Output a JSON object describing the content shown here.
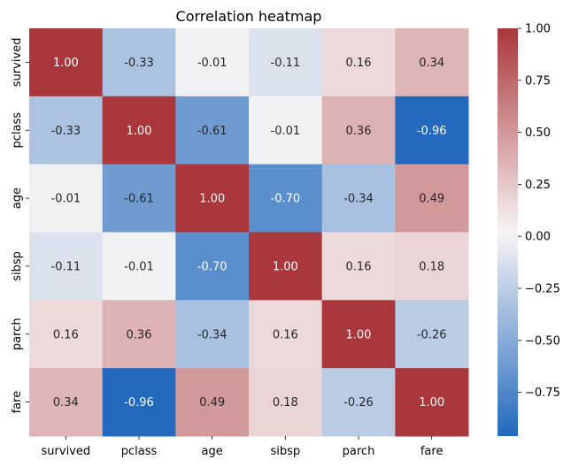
{
  "chart_data": {
    "type": "heatmap",
    "title": "Correlation heatmap",
    "xlabel": "",
    "ylabel": "",
    "x_categories": [
      "survived",
      "pclass",
      "age",
      "sibsp",
      "parch",
      "fare"
    ],
    "y_categories": [
      "survived",
      "pclass",
      "age",
      "sibsp",
      "parch",
      "fare"
    ],
    "values": [
      [
        1.0,
        -0.33,
        -0.01,
        -0.11,
        0.16,
        0.34
      ],
      [
        -0.33,
        1.0,
        -0.61,
        -0.01,
        0.36,
        -0.96
      ],
      [
        -0.01,
        -0.61,
        1.0,
        -0.7,
        -0.34,
        0.49
      ],
      [
        -0.11,
        -0.01,
        -0.7,
        1.0,
        0.16,
        0.18
      ],
      [
        0.16,
        0.36,
        -0.34,
        0.16,
        1.0,
        -0.26
      ],
      [
        0.34,
        -0.96,
        0.49,
        0.18,
        -0.26,
        1.0
      ]
    ],
    "annotations_format": "0.00",
    "colormap": "vlag",
    "colors": {
      "low": "#2369bd",
      "mid": "#f7f4f4",
      "high": "#a9373b"
    },
    "value_range": [
      -0.96,
      1.0
    ],
    "colorbar": {
      "ticks": [
        1.0,
        0.75,
        0.5,
        0.25,
        0.0,
        -0.25,
        -0.5,
        -0.75
      ],
      "tick_labels": [
        "1.00",
        "0.75",
        "0.50",
        "0.25",
        "0.00",
        "−0.25",
        "−0.50",
        "−0.75"
      ]
    },
    "grid": false,
    "legend": "colorbar-right"
  }
}
